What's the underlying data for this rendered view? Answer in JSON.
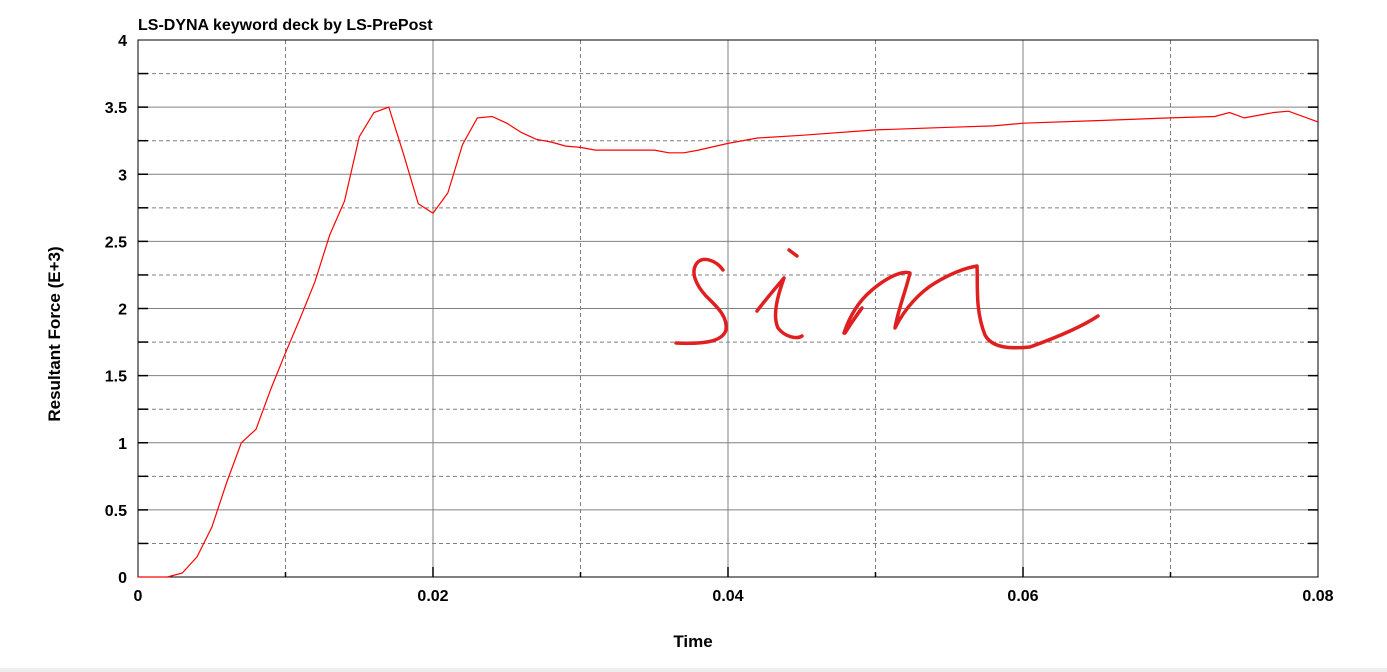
{
  "chart_data": {
    "type": "line",
    "title": "LS-DYNA keyword deck by LS-PrePost",
    "xlabel": "Time",
    "ylabel": "Resultant Force (E+3)",
    "xlim": [
      0,
      0.08
    ],
    "ylim": [
      0,
      4
    ],
    "x_ticks": [
      "0",
      "0.02",
      "0.04",
      "0.06",
      "0.08"
    ],
    "y_ticks": [
      "0",
      "0.5",
      "1",
      "1.5",
      "2",
      "2.5",
      "3",
      "3.5",
      "4"
    ],
    "grid": true,
    "series": [
      {
        "color": "#ff0000",
        "x": [
          0,
          0.002,
          0.003,
          0.004,
          0.005,
          0.006,
          0.007,
          0.008,
          0.009,
          0.01,
          0.011,
          0.012,
          0.013,
          0.014,
          0.015,
          0.016,
          0.017,
          0.018,
          0.019,
          0.02,
          0.021,
          0.022,
          0.023,
          0.024,
          0.025,
          0.026,
          0.027,
          0.028,
          0.029,
          0.03,
          0.031,
          0.035,
          0.036,
          0.037,
          0.038,
          0.04,
          0.042,
          0.045,
          0.05,
          0.055,
          0.058,
          0.06,
          0.065,
          0.07,
          0.073,
          0.074,
          0.075,
          0.077,
          0.078,
          0.08
        ],
        "y": [
          0,
          0,
          0.03,
          0.15,
          0.37,
          0.7,
          1.0,
          1.1,
          1.4,
          1.67,
          1.93,
          2.2,
          2.55,
          2.8,
          3.28,
          3.46,
          3.5,
          3.15,
          2.78,
          2.71,
          2.86,
          3.22,
          3.42,
          3.43,
          3.38,
          3.31,
          3.26,
          3.24,
          3.21,
          3.2,
          3.18,
          3.18,
          3.16,
          3.16,
          3.18,
          3.23,
          3.27,
          3.29,
          3.33,
          3.35,
          3.36,
          3.38,
          3.4,
          3.42,
          3.43,
          3.46,
          3.42,
          3.46,
          3.47,
          3.39
        ]
      }
    ],
    "annotation": {
      "text": "sin",
      "style": "handwritten",
      "color": "#e02020"
    }
  }
}
